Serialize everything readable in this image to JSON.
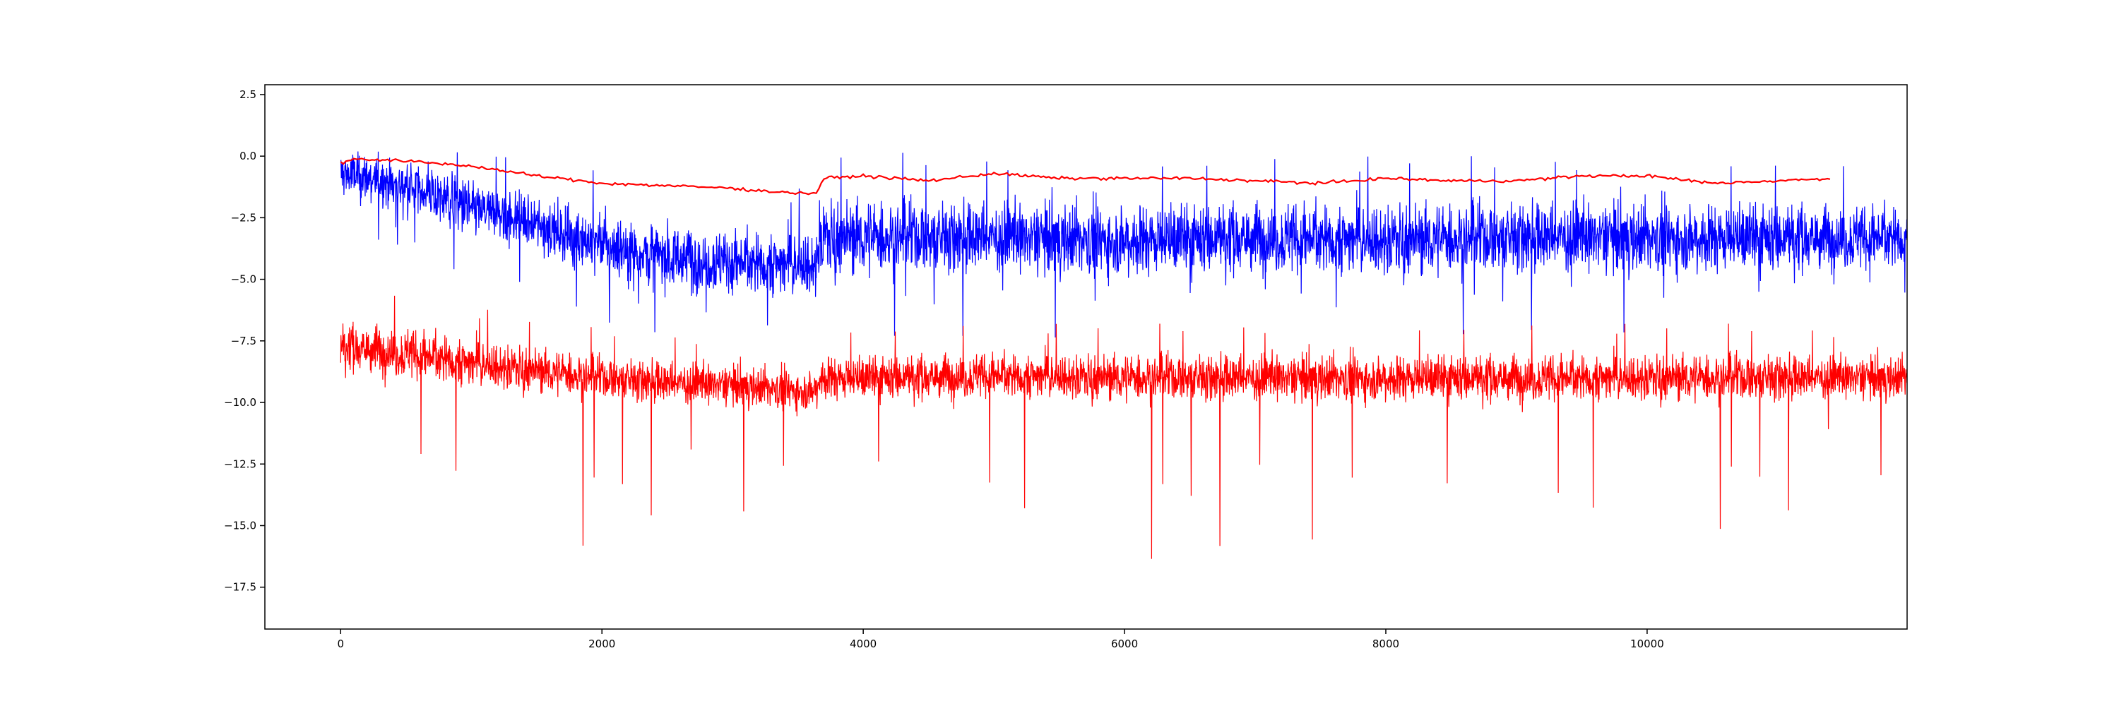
{
  "chart_data": {
    "type": "line",
    "title": "",
    "xlabel": "",
    "ylabel": "",
    "xlim": [
      -580,
      11990
    ],
    "ylim": [
      -19.2,
      2.9
    ],
    "grid": false,
    "legend": "none",
    "x_ticks": [
      0,
      2000,
      4000,
      6000,
      8000,
      10000
    ],
    "x_tick_labels": [
      "0",
      "2000",
      "4000",
      "6000",
      "8000",
      "10000"
    ],
    "y_ticks": [
      2.5,
      0.0,
      -2.5,
      -5.0,
      -7.5,
      -10.0,
      -12.5,
      -15.0,
      -17.5
    ],
    "y_tick_labels": [
      "2.5",
      "0.0",
      "−2.5",
      "−5.0",
      "−7.5",
      "−10.0",
      "−12.5",
      "−15.0",
      "−17.5"
    ],
    "n_points": 11400,
    "series": [
      {
        "color": "#0000ff",
        "style": "noisy",
        "x": [
          0,
          500,
          1000,
          1500,
          2000,
          2500,
          3000,
          3500,
          3640,
          3660,
          4000,
          5000,
          6000,
          7000,
          8000,
          9000,
          10000,
          11000,
          11400
        ],
        "center": [
          -0.7,
          -1.2,
          -2.1,
          -2.8,
          -3.6,
          -4.1,
          -4.3,
          -4.4,
          -4.4,
          -3.3,
          -3.3,
          -3.3,
          -3.4,
          -3.3,
          -3.4,
          -3.3,
          -3.3,
          -3.3,
          -3.3
        ],
        "upper": [
          1.8,
          1.1,
          0.5,
          -0.2,
          -0.6,
          -1.0,
          -1.3,
          -1.3,
          -1.3,
          0.3,
          0.2,
          0.0,
          0.0,
          0.0,
          0.0,
          0.0,
          0.0,
          0.0,
          -0.3
        ],
        "lower": [
          -3.5,
          -4.6,
          -5.7,
          -6.6,
          -7.2,
          -7.7,
          -7.9,
          -8.0,
          -8.0,
          -7.3,
          -7.3,
          -7.5,
          -7.3,
          -7.2,
          -7.4,
          -7.2,
          -7.2,
          -7.2,
          -6.5
        ]
      },
      {
        "color": "#ff0000",
        "style": "noisy",
        "x": [
          0,
          500,
          1000,
          1500,
          2000,
          2500,
          3000,
          3500,
          3640,
          3660,
          4000,
          5000,
          6000,
          7000,
          8000,
          9000,
          10000,
          11000,
          11400
        ],
        "center": [
          -7.7,
          -8.0,
          -8.4,
          -8.7,
          -9.0,
          -9.2,
          -9.3,
          -9.5,
          -9.5,
          -9.0,
          -9.0,
          -8.9,
          -9.0,
          -9.0,
          -9.0,
          -9.0,
          -9.0,
          -9.0,
          -9.0
        ],
        "upper": [
          -5.5,
          -5.6,
          -6.1,
          -6.6,
          -7.0,
          -7.2,
          -7.4,
          -7.6,
          -7.6,
          -6.9,
          -6.9,
          -6.8,
          -6.8,
          -6.8,
          -6.8,
          -6.8,
          -6.8,
          -6.8,
          -7.0
        ],
        "lower": [
          -13.0,
          -15.3,
          -14.5,
          -15.7,
          -16.0,
          -14.4,
          -14.5,
          -14.4,
          -14.4,
          -14.7,
          -14.8,
          -16.6,
          -16.6,
          -15.9,
          -15.3,
          -18.0,
          -15.5,
          -15.0,
          -13.0
        ]
      },
      {
        "color": "#ff0000",
        "style": "smooth",
        "x": [
          0,
          100,
          500,
          1000,
          1500,
          2000,
          2500,
          3000,
          3200,
          3500,
          3640,
          3700,
          4000,
          4500,
          5000,
          5500,
          6000,
          6500,
          7000,
          7500,
          8000,
          8500,
          9000,
          9500,
          10000,
          10500,
          11000,
          11400
        ],
        "y": [
          -0.3,
          -0.1,
          -0.2,
          -0.4,
          -0.8,
          -1.1,
          -1.2,
          -1.3,
          -1.4,
          -1.5,
          -1.5,
          -0.9,
          -0.8,
          -1.0,
          -0.7,
          -0.9,
          -0.9,
          -0.9,
          -1.0,
          -1.1,
          -0.9,
          -1.0,
          -1.0,
          -0.8,
          -0.8,
          -1.1,
          -1.0,
          -0.9
        ]
      }
    ]
  }
}
